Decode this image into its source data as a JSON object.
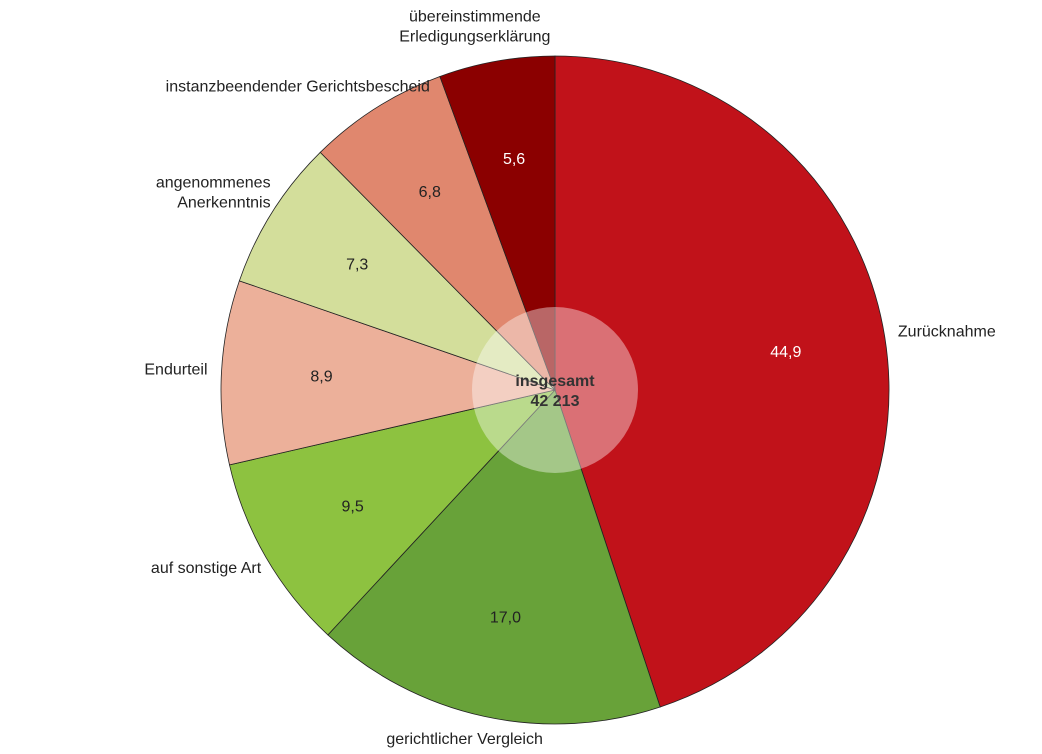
{
  "chart_data": {
    "type": "pie",
    "categories": [
      "Zurücknahme",
      "gerichtlicher Vergleich",
      "auf sonstige Art",
      "Endurteil",
      "angenommenes Anerkenntnis",
      "instanzbeendender Gerichtsbescheid",
      "übereinstimmende Erledigungserklärung"
    ],
    "values": [
      44.9,
      17.0,
      9.5,
      8.9,
      7.3,
      6.8,
      5.6
    ],
    "value_labels": [
      "44,9",
      "17,0",
      "9,5",
      "8,9",
      "7,3",
      "6,8",
      "5,6"
    ],
    "colors": [
      "#c1121a",
      "#68a239",
      "#8dc240",
      "#ecb09a",
      "#d3de9b",
      "#e0876e",
      "#8b0000"
    ],
    "center_text": [
      "insgesamt",
      "42 213"
    ]
  }
}
